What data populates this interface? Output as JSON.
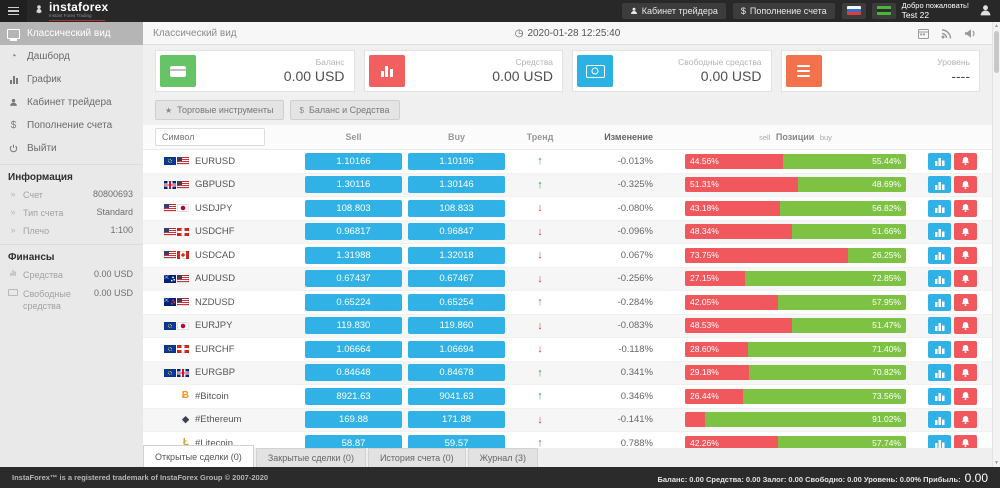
{
  "topbar": {
    "logo_name": "instaforex",
    "logo_subtitle": "Instant Forex Trading",
    "trader_cabinet_label": "Кабинет трейдера",
    "deposit_label": "Пополнение счета",
    "welcome_line1": "Добро пожаловать!",
    "welcome_line2": "Test 22"
  },
  "sidebar": {
    "items": [
      {
        "label": "Классический вид",
        "icon": "monitor-icon",
        "active": true
      },
      {
        "label": "Дашборд",
        "icon": "gauge-icon"
      },
      {
        "label": "График",
        "icon": "bar-chart-icon"
      },
      {
        "label": "Кабинет трейдера",
        "icon": "user-icon"
      },
      {
        "label": "Пополнение счета",
        "icon": "dollar-icon"
      },
      {
        "label": "Выйти",
        "icon": "power-icon"
      }
    ],
    "info_section": {
      "title": "Информация",
      "rows": [
        {
          "label": "Счет",
          "value": "80800693"
        },
        {
          "label": "Тип счета",
          "value": "Standard"
        },
        {
          "label": "Плечо",
          "value": "1:100"
        }
      ]
    },
    "finance_section": {
      "title": "Финансы",
      "rows": [
        {
          "label": "Средства",
          "value": "0.00 USD"
        },
        {
          "label": "Свободные средства",
          "value": "0.00 USD"
        }
      ]
    }
  },
  "main": {
    "page_title": "Классический вид",
    "clock_glyph": "◷",
    "timestamp": "2020-01-28 12:25:40",
    "cards": [
      {
        "label": "Баланс",
        "value": "0.00 USD",
        "color": "#66c366",
        "icon": "credit-card-icon"
      },
      {
        "label": "Средства",
        "value": "0.00 USD",
        "color": "#f15f5f",
        "icon": "bar-chart-icon"
      },
      {
        "label": "Свободные средства",
        "value": "0.00 USD",
        "color": "#29b2e3",
        "icon": "banknote-icon"
      },
      {
        "label": "Уровень",
        "value": "----",
        "color": "#f4714d",
        "icon": "list-icon"
      }
    ],
    "view_buttons": [
      {
        "label": "Торговые инструменты",
        "icon_glyph": "★"
      },
      {
        "label": "Баланс и Средства",
        "icon_glyph": "$"
      }
    ],
    "table": {
      "search_placeholder": "Символ",
      "columns": {
        "sell": "Sell",
        "buy": "Buy",
        "trend": "Тренд",
        "change": "Изменение",
        "positions_small_left": "sell",
        "positions_big": "Позиции",
        "positions_small_right": "buy"
      },
      "rows": [
        {
          "symbol": "EURUSD",
          "icons": [
            "flag-eu",
            "flag-us"
          ],
          "sell": "1.10166",
          "buy": "1.10196",
          "trend": "up",
          "change": "-0.013%",
          "sell_pct_label": "44.56%",
          "buy_pct_label": "55.44%",
          "sell_pct": 44.56,
          "buy_pct": 55.44
        },
        {
          "symbol": "GBPUSD",
          "icons": [
            "flag-gb",
            "flag-us"
          ],
          "sell": "1.30116",
          "buy": "1.30146",
          "trend": "up",
          "change": "-0.325%",
          "sell_pct_label": "51.31%",
          "buy_pct_label": "48.69%",
          "sell_pct": 51.31,
          "buy_pct": 48.69
        },
        {
          "symbol": "USDJPY",
          "icons": [
            "flag-us",
            "flag-jp"
          ],
          "sell": "108.803",
          "buy": "108.833",
          "trend": "down",
          "change": "-0.080%",
          "sell_pct_label": "43.18%",
          "buy_pct_label": "56.82%",
          "sell_pct": 43.18,
          "buy_pct": 56.82
        },
        {
          "symbol": "USDCHF",
          "icons": [
            "flag-us",
            "flag-ch"
          ],
          "sell": "0.96817",
          "buy": "0.96847",
          "trend": "down",
          "change": "-0.096%",
          "sell_pct_label": "48.34%",
          "buy_pct_label": "51.66%",
          "sell_pct": 48.34,
          "buy_pct": 51.66
        },
        {
          "symbol": "USDCAD",
          "icons": [
            "flag-us",
            "flag-ca"
          ],
          "sell": "1.31988",
          "buy": "1.32018",
          "trend": "down",
          "change": "0.067%",
          "sell_pct_label": "73.75%",
          "buy_pct_label": "26.25%",
          "sell_pct": 73.75,
          "buy_pct": 26.25
        },
        {
          "symbol": "AUDUSD",
          "icons": [
            "flag-au",
            "flag-us"
          ],
          "sell": "0.67437",
          "buy": "0.67467",
          "trend": "down",
          "change": "-0.256%",
          "sell_pct_label": "27.15%",
          "buy_pct_label": "72.85%",
          "sell_pct": 27.15,
          "buy_pct": 72.85
        },
        {
          "symbol": "NZDUSD",
          "icons": [
            "flag-nz",
            "flag-us"
          ],
          "sell": "0.65224",
          "buy": "0.65254",
          "trend": "up",
          "change": "-0.284%",
          "sell_pct_label": "42.05%",
          "buy_pct_label": "57.95%",
          "sell_pct": 42.05,
          "buy_pct": 57.95
        },
        {
          "symbol": "EURJPY",
          "icons": [
            "flag-eu",
            "flag-jp"
          ],
          "sell": "119.830",
          "buy": "119.860",
          "trend": "down",
          "change": "-0.083%",
          "sell_pct_label": "48.53%",
          "buy_pct_label": "51.47%",
          "sell_pct": 48.53,
          "buy_pct": 51.47
        },
        {
          "symbol": "EURCHF",
          "icons": [
            "flag-eu",
            "flag-ch"
          ],
          "sell": "1.06664",
          "buy": "1.06694",
          "trend": "down",
          "change": "-0.118%",
          "sell_pct_label": "28.60%",
          "buy_pct_label": "71.40%",
          "sell_pct": 28.6,
          "buy_pct": 71.4
        },
        {
          "symbol": "EURGBP",
          "icons": [
            "flag-eu",
            "flag-gb"
          ],
          "sell": "0.84648",
          "buy": "0.84678",
          "trend": "up",
          "change": "0.341%",
          "sell_pct_label": "29.18%",
          "buy_pct_label": "70.82%",
          "sell_pct": 29.18,
          "buy_pct": 70.82
        },
        {
          "symbol": "#Bitcoin",
          "icons": [
            "crypto-btc"
          ],
          "sell": "8921.63",
          "buy": "9041.63",
          "trend": "up",
          "change": "0.346%",
          "sell_pct_label": "26.44%",
          "buy_pct_label": "73.56%",
          "sell_pct": 26.44,
          "buy_pct": 73.56
        },
        {
          "symbol": "#Ethereum",
          "icons": [
            "crypto-eth"
          ],
          "sell": "169.88",
          "buy": "171.88",
          "trend": "down",
          "change": "-0.141%",
          "sell_pct_label": "",
          "buy_pct_label": "91.02%",
          "sell_pct": 8.98,
          "buy_pct": 91.02
        },
        {
          "symbol": "#Litecoin",
          "icons": [
            "crypto-ltc"
          ],
          "sell": "58.87",
          "buy": "59.57",
          "trend": "up",
          "change": "0.788%",
          "sell_pct_label": "42.26%",
          "buy_pct_label": "57.74%",
          "sell_pct": 42.26,
          "buy_pct": 57.74
        },
        {
          "symbol": "",
          "icons": [],
          "sell": "",
          "buy": "",
          "trend": "up",
          "change": "",
          "sell_pct_label": "",
          "buy_pct_label": "",
          "sell_pct": 3,
          "buy_pct": 97,
          "partial": true
        }
      ]
    },
    "tabs": [
      {
        "label": "Открытые сделки (0)",
        "active": true
      },
      {
        "label": "Закрытые сделки (0)"
      },
      {
        "label": "История счета (0)"
      },
      {
        "label": "Журнал (3)"
      }
    ]
  },
  "footer": {
    "left": "InstaForex™ is a registered trademark of InstaForex Group © 2007-2020",
    "right_stats": "Баланс: 0.00 Средства: 0.00 Залог: 0.00 Свободно: 0.00 Уровень: 0.00% Прибыль:",
    "profit_value": "0.00"
  },
  "icon_glyphs": {
    "crypto-btc": "Ƀ",
    "crypto-eth": "◆",
    "crypto-ltc": "Ł",
    "gauge-icon": "◔",
    "dollar-icon": "$",
    "info-prefix": "»",
    "trend-up": "↑",
    "trend-down": "↓"
  },
  "colors": {
    "price_button": "#30b2e6",
    "bar_sell": "#f1585d",
    "bar_buy": "#7dc242",
    "trend_up": "#3f9a3f",
    "trend_down": "#c9463d"
  }
}
